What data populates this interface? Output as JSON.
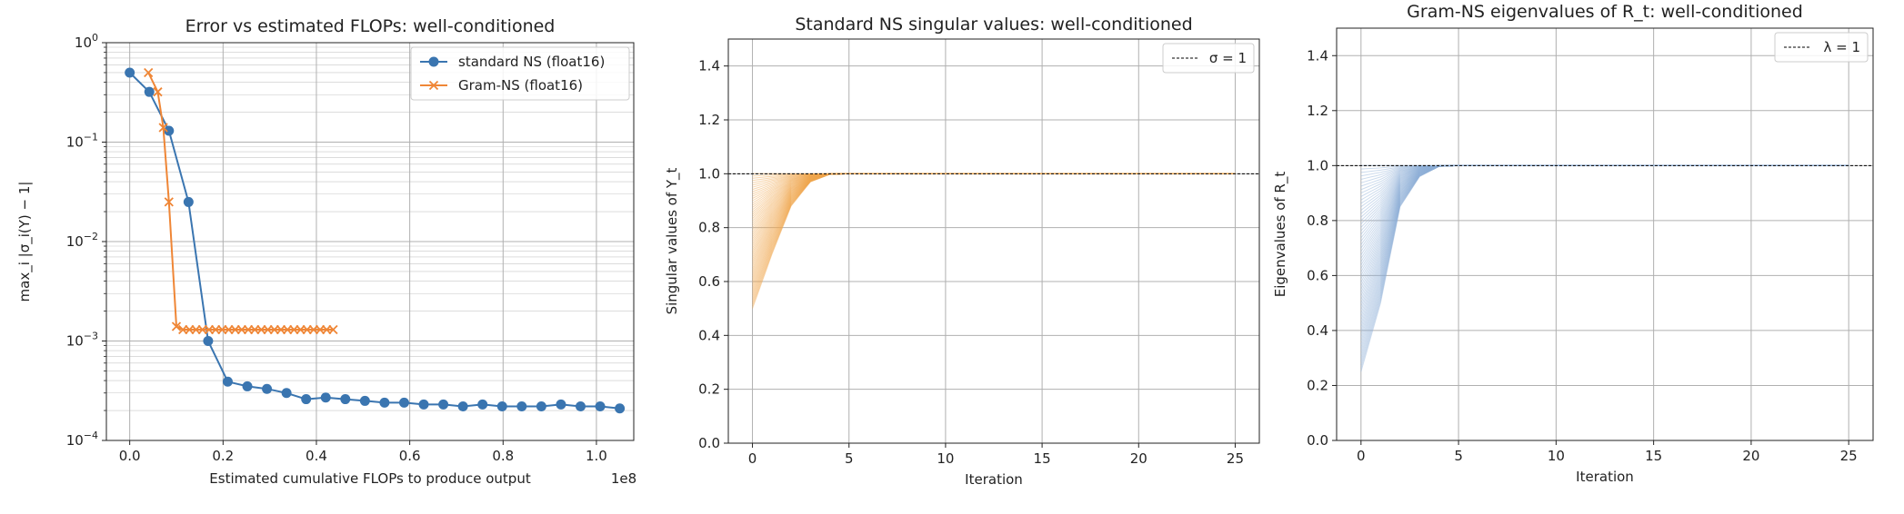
{
  "colors": {
    "blue": "#3a75b0",
    "orange": "#ef8636",
    "grid": "#b0b0b0",
    "axis": "#222222",
    "fill_orange": "#f0a64e",
    "fill_blue": "#8fb0d6"
  },
  "chart_data": [
    {
      "type": "line",
      "title": "Error vs estimated FLOPs: well-conditioned",
      "xlabel": "Estimated cumulative FLOPs to produce output",
      "ylabel": "max_i |σ_i(Y) − 1|",
      "x_offset_label": "1e8",
      "x_scale_multiplier": 100000000,
      "yscale": "log",
      "xlim": [
        -0.05,
        1.08
      ],
      "ylim": [
        0.0001,
        1
      ],
      "grid": "on (major + minor)",
      "legend_position": "top-right",
      "xticks": [
        0.0,
        0.2,
        0.4,
        0.6,
        0.8,
        1.0
      ],
      "xtick_labels": [
        "0.0",
        "0.2",
        "0.4",
        "0.6",
        "0.8",
        "1.0"
      ],
      "ytick_labels": [
        {
          "base": "10",
          "exp": "0",
          "value": 1
        },
        {
          "base": "10",
          "exp": "−1",
          "value": 0.1
        },
        {
          "base": "10",
          "exp": "−2",
          "value": 0.01
        },
        {
          "base": "10",
          "exp": "−3",
          "value": 0.001
        },
        {
          "base": "10",
          "exp": "−4",
          "value": 0.0001
        }
      ],
      "series": [
        {
          "name": "standard NS (float16)",
          "color": "#3a75b0",
          "marker": "circle",
          "x": [
            0.0,
            0.042,
            0.084,
            0.126,
            0.168,
            0.21,
            0.252,
            0.294,
            0.336,
            0.378,
            0.42,
            0.462,
            0.504,
            0.546,
            0.588,
            0.63,
            0.672,
            0.714,
            0.756,
            0.798,
            0.84,
            0.882,
            0.924,
            0.966,
            1.008,
            1.05
          ],
          "y": [
            0.5,
            0.32,
            0.13,
            0.025,
            0.001,
            0.00039,
            0.00035,
            0.00033,
            0.0003,
            0.00026,
            0.00027,
            0.00026,
            0.00025,
            0.00024,
            0.00024,
            0.00023,
            0.00023,
            0.00022,
            0.00023,
            0.00022,
            0.00022,
            0.00022,
            0.00023,
            0.00022,
            0.00022,
            0.00021
          ]
        },
        {
          "name": "Gram-NS (float16)",
          "color": "#ef8636",
          "marker": "x",
          "x": [
            0.04,
            0.06,
            0.072,
            0.084,
            0.1,
            0.114,
            0.128,
            0.142,
            0.156,
            0.17,
            0.184,
            0.198,
            0.212,
            0.226,
            0.24,
            0.254,
            0.268,
            0.282,
            0.296,
            0.31,
            0.324,
            0.338,
            0.352,
            0.366,
            0.38,
            0.394,
            0.408,
            0.422,
            0.436
          ],
          "y": [
            0.5,
            0.32,
            0.14,
            0.025,
            0.0014,
            0.0013,
            0.0013,
            0.0013,
            0.0013,
            0.0013,
            0.0013,
            0.0013,
            0.0013,
            0.0013,
            0.0013,
            0.0013,
            0.0013,
            0.0013,
            0.0013,
            0.0013,
            0.0013,
            0.0013,
            0.0013,
            0.0013,
            0.0013,
            0.0013,
            0.0013,
            0.0013,
            0.0013
          ]
        }
      ]
    },
    {
      "type": "area",
      "title": "Standard NS singular values: well-conditioned",
      "xlabel": "Iteration",
      "ylabel": "Singular values of Y_t",
      "xlim": [
        -1.25,
        26.25
      ],
      "ylim": [
        0.0,
        1.5
      ],
      "grid": "on",
      "legend_position": "top-right",
      "legend": [
        {
          "name": "σ = 1",
          "style": "dashed black"
        }
      ],
      "xticks": [
        0,
        5,
        10,
        15,
        20,
        25
      ],
      "yticks": [
        0.0,
        0.2,
        0.4,
        0.6,
        0.8,
        1.0,
        1.2,
        1.4
      ],
      "ytick_labels": [
        "0.0",
        "0.2",
        "0.4",
        "0.6",
        "0.8",
        "1.0",
        "1.2",
        "1.4"
      ],
      "reference_line": 1.0,
      "envelope": {
        "x": [
          0,
          1,
          2,
          3,
          4,
          5,
          25
        ],
        "min": [
          0.5,
          0.7,
          0.88,
          0.97,
          0.998,
          1.0,
          1.0
        ]
      },
      "color": "#f0a64e"
    },
    {
      "type": "area",
      "title": "Gram-NS eigenvalues of R_t: well-conditioned",
      "xlabel": "Iteration",
      "ylabel": "Eigenvalues of R_t",
      "xlim": [
        -1.25,
        26.25
      ],
      "ylim": [
        0.0,
        1.5
      ],
      "grid": "on",
      "legend_position": "top-right",
      "legend": [
        {
          "name": "λ = 1",
          "style": "dashed black"
        }
      ],
      "xticks": [
        0,
        5,
        10,
        15,
        20,
        25
      ],
      "yticks": [
        0.0,
        0.2,
        0.4,
        0.6,
        0.8,
        1.0,
        1.2,
        1.4
      ],
      "ytick_labels": [
        "0.0",
        "0.2",
        "0.4",
        "0.6",
        "0.8",
        "1.0",
        "1.2",
        "1.4"
      ],
      "reference_line": 1.0,
      "envelope": {
        "x": [
          0,
          1,
          2,
          3,
          4,
          5,
          25
        ],
        "min": [
          0.25,
          0.5,
          0.85,
          0.96,
          0.997,
          1.0,
          1.0
        ]
      },
      "color": "#8fb0d6"
    }
  ]
}
